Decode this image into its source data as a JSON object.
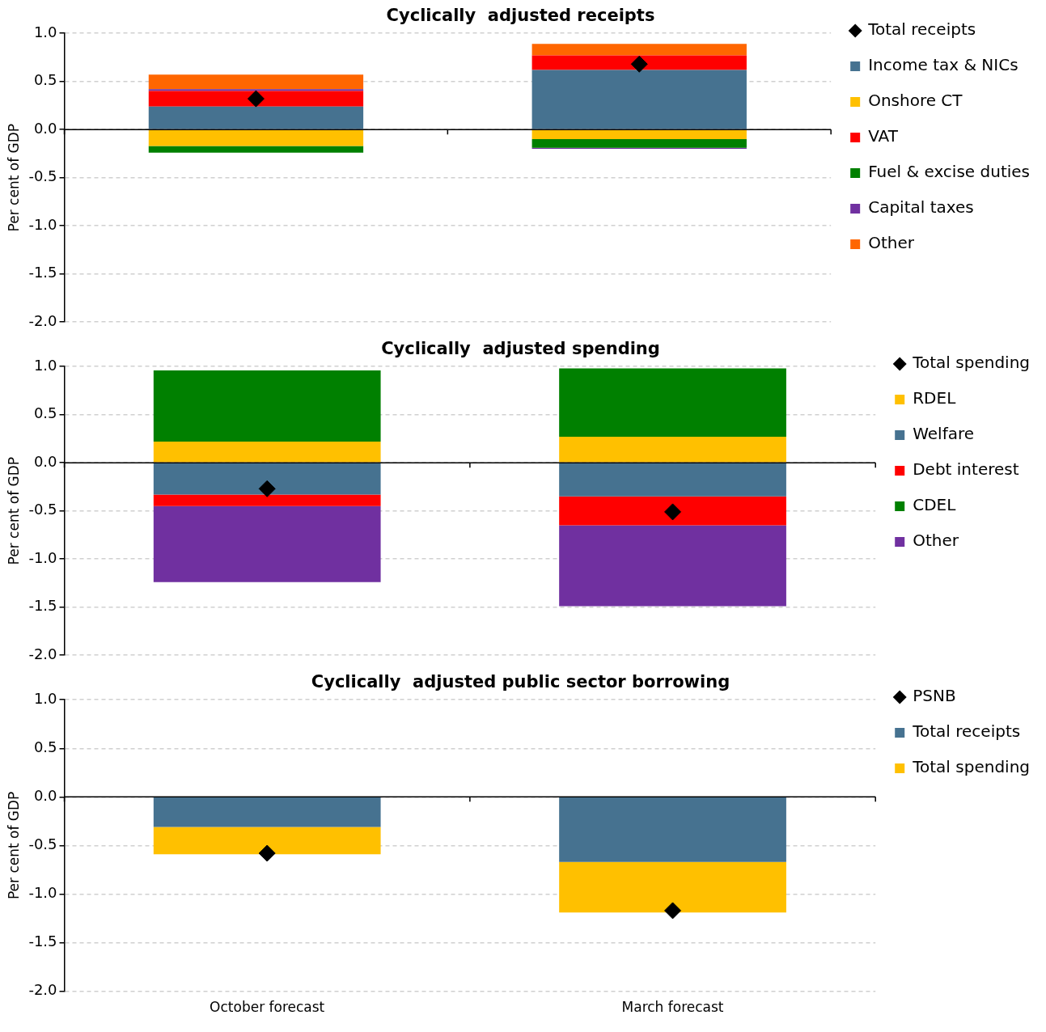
{
  "chart_data": [
    {
      "type": "bar",
      "title": "Cyclically  adjusted receipts",
      "ylabel": "Per cent of GDP",
      "categories": [
        "October forecast",
        "March forecast"
      ],
      "stacked": true,
      "ylim": [
        -2,
        1
      ],
      "yticks": [
        {
          "value": -2,
          "label": "-2.0"
        },
        {
          "value": -1.5,
          "label": "-1.5"
        },
        {
          "value": -1,
          "label": "-1.0"
        },
        {
          "value": -0.5,
          "label": "-0.5"
        },
        {
          "value": 0,
          "label": "0.0"
        },
        {
          "value": 0.5,
          "label": "0.5"
        },
        {
          "value": 1,
          "label": "1.0"
        }
      ],
      "grid": "y",
      "legend": "right",
      "tick_labels": "y",
      "series": [
        {
          "name": "Income tax & NICs",
          "color": "#467290",
          "values": [
            0.24,
            0.62
          ]
        },
        {
          "name": "Onshore CT",
          "color": "#ffc000",
          "values": [
            -0.17,
            -0.1
          ]
        },
        {
          "name": "VAT",
          "color": "#ff0000",
          "values": [
            0.16,
            0.15
          ]
        },
        {
          "name": "Fuel & excise duties",
          "color": "#008000",
          "values": [
            -0.07,
            -0.09
          ]
        },
        {
          "name": "Capital taxes",
          "color": "#7030a0",
          "values": [
            0.02,
            -0.01
          ]
        },
        {
          "name": "Other",
          "color": "#ff6600",
          "values": [
            0.15,
            0.12
          ]
        },
        {
          "name": "Total receipts",
          "type": "scatter",
          "marker": "diamond",
          "color": "#000000",
          "x": [
            "October forecast",
            "March forecast"
          ],
          "values": [
            0.32,
            0.68
          ]
        }
      ]
    },
    {
      "type": "bar",
      "title": "Cyclically  adjusted spending",
      "ylabel": "Per cent of GDP",
      "categories": [
        "October forecast",
        "March forecast"
      ],
      "stacked": true,
      "ylim": [
        -2,
        1
      ],
      "yticks": [
        {
          "value": -2,
          "label": "-2.0"
        },
        {
          "value": -1.5,
          "label": "-1.5"
        },
        {
          "value": -1,
          "label": "-1.0"
        },
        {
          "value": -0.5,
          "label": "-0.5"
        },
        {
          "value": 0,
          "label": "0.0"
        },
        {
          "value": 0.5,
          "label": "0.5"
        },
        {
          "value": 1,
          "label": "1.0"
        }
      ],
      "grid": "y",
      "legend": "right",
      "tick_labels": "y",
      "series": [
        {
          "name": "RDEL",
          "color": "#ffc000",
          "values": [
            0.22,
            0.27
          ]
        },
        {
          "name": "Welfare",
          "color": "#467290",
          "values": [
            -0.33,
            -0.35
          ]
        },
        {
          "name": "Debt interest",
          "color": "#ff0000",
          "values": [
            -0.12,
            -0.3
          ]
        },
        {
          "name": "CDEL",
          "color": "#008000",
          "values": [
            0.74,
            0.71
          ]
        },
        {
          "name": "Other",
          "color": "#7030a0",
          "values": [
            -0.79,
            -0.84
          ]
        },
        {
          "name": "Total spending",
          "type": "scatter",
          "marker": "diamond",
          "color": "#000000",
          "x": [
            "October forecast",
            "March forecast"
          ],
          "values": [
            -0.27,
            -0.51
          ]
        }
      ]
    },
    {
      "type": "bar",
      "title": "Cyclically  adjusted public sector borrowing",
      "ylabel": "Per cent of GDP",
      "categories": [
        "October forecast",
        "March forecast"
      ],
      "stacked": true,
      "ylim": [
        -2,
        1
      ],
      "yticks": [
        {
          "value": -2,
          "label": "-2.0"
        },
        {
          "value": -1.5,
          "label": "-1.5"
        },
        {
          "value": -1,
          "label": "-1.0"
        },
        {
          "value": -0.5,
          "label": "-0.5"
        },
        {
          "value": 0,
          "label": "0.0"
        },
        {
          "value": 0.5,
          "label": "0.5"
        },
        {
          "value": 1,
          "label": "1.0"
        }
      ],
      "grid": "y",
      "legend": "right",
      "series": [
        {
          "name": "Total receipts",
          "color": "#467290",
          "values": [
            -0.31,
            -0.67
          ]
        },
        {
          "name": "Total spending",
          "color": "#ffc000",
          "values": [
            -0.28,
            -0.52
          ]
        },
        {
          "name": "PSNB",
          "type": "scatter",
          "marker": "diamond",
          "color": "#000000",
          "x": [
            "October forecast",
            "March forecast"
          ],
          "values": [
            -0.58,
            -1.17
          ]
        }
      ]
    }
  ]
}
